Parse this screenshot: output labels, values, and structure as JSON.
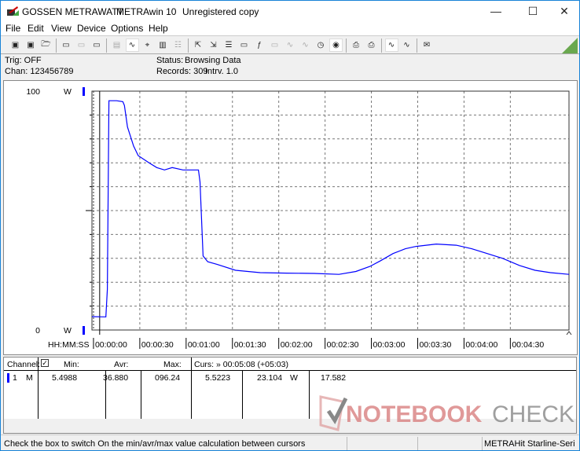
{
  "window": {
    "brand": "GOSSEN METRAWATT",
    "app": "METRAwin 10",
    "license": "Unregistered copy"
  },
  "menu": [
    "File",
    "Edit",
    "View",
    "Device",
    "Options",
    "Help"
  ],
  "toolbar_icons": [
    "save-icon",
    "save-as-icon",
    "open-folder-icon",
    "device-read-icon",
    "device-disabled-icon",
    "device-transfer-icon",
    "list-icon",
    "waveform-icon",
    "crosshair-icon",
    "table-icon",
    "grid-icon",
    "export-icon",
    "import-icon",
    "data-icon",
    "monitor-icon",
    "function-icon",
    "device-icon",
    "signal-icon",
    "signal-fft-icon",
    "clock-icon",
    "timer-icon",
    "print-icon",
    "print-setup-icon",
    "zoom-signal-icon",
    "zoom-curve-icon",
    "comment-icon"
  ],
  "info": {
    "trig": "Trig: OFF",
    "chan": "Chan:  123456789",
    "status_label": "Status:",
    "status_value": "Browsing Data",
    "records": "Records: 309",
    "interval": "Intrv. 1.0"
  },
  "chart_data": {
    "type": "line",
    "ylim": [
      0,
      100
    ],
    "y_top_label": "100",
    "y_bottom_label": "0",
    "y_unit": "W",
    "x_axis_label": "HH:MM:SS",
    "xlim": [
      -1,
      308
    ],
    "x_ticks": [
      0,
      30,
      60,
      90,
      120,
      150,
      180,
      210,
      240,
      270
    ],
    "x_tick_labels": [
      "00:00:00",
      "00:00:30",
      "00:01:00",
      "00:01:30",
      "00:02:00",
      "00:02:30",
      "00:03:00",
      "00:03:30",
      "00:04:00",
      "00:04:30"
    ],
    "grid": true,
    "line_color": "#0000ff",
    "cursor_time": 4,
    "series": [
      {
        "x": [
          -1,
          8,
          9,
          10,
          15,
          19,
          20,
          22,
          26,
          29,
          36,
          41,
          46,
          51,
          58,
          62,
          68,
          69,
          71,
          74,
          80,
          92,
          108,
          125,
          143,
          159,
          170,
          179,
          186,
          194,
          202,
          209,
          222,
          235,
          245,
          255,
          265,
          276,
          286,
          296,
          308
        ],
        "y": [
          5.6,
          5.5,
          17,
          96,
          96,
          95.6,
          94,
          85,
          77,
          73,
          70,
          68,
          67,
          68,
          67,
          67,
          67,
          62,
          31,
          28.6,
          27.5,
          25,
          24,
          23.8,
          23.7,
          23.3,
          24.5,
          26.6,
          29,
          32,
          34,
          35,
          36,
          35.5,
          34,
          32,
          30,
          27,
          25,
          24,
          23.3
        ]
      }
    ]
  },
  "table": {
    "headers": {
      "channel": "Channel:",
      "min": "Min:",
      "avr": "Avr:",
      "max": "Max:",
      "curs": "Curs: » 00:05:08 (+05:03)"
    },
    "row": {
      "num": "1",
      "mode": "M",
      "min": "5.4988",
      "avr": "36.880",
      "max": "096.24",
      "c1": "5.5223",
      "c2": "23.104",
      "unit": "W",
      "diff": "17.582"
    },
    "checkbox_checked": true,
    "channel_color": "#0000ff"
  },
  "statusbar": {
    "hint": "Check the box to switch On the min/avr/max value calculation between cursors",
    "device": "METRAHit Starline-Seri"
  },
  "watermark": "NOTEBOOKCHECK"
}
